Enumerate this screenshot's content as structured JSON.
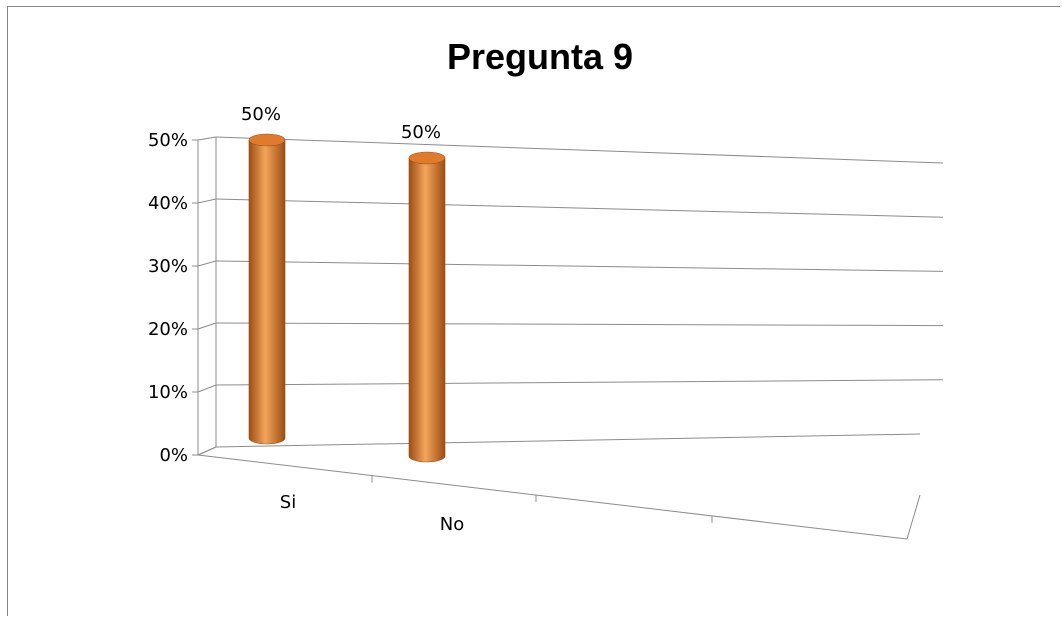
{
  "chart_data": {
    "type": "bar",
    "title": "Pregunta 9",
    "categories": [
      "Si",
      "No"
    ],
    "values": [
      0.5,
      0.5
    ],
    "data_labels": [
      "50%",
      "50%"
    ],
    "y_ticks": [
      "0%",
      "10%",
      "20%",
      "30%",
      "40%",
      "50%"
    ],
    "ylim": [
      0,
      0.5
    ],
    "grid": true,
    "legend": "none",
    "style": "3d-cylinder"
  },
  "colors": {
    "bar_light": "#f4a55c",
    "bar_mid": "#e07a2c",
    "bar_dark": "#9c4d12",
    "grid": "#8c8c8c",
    "frame": "#868686"
  }
}
